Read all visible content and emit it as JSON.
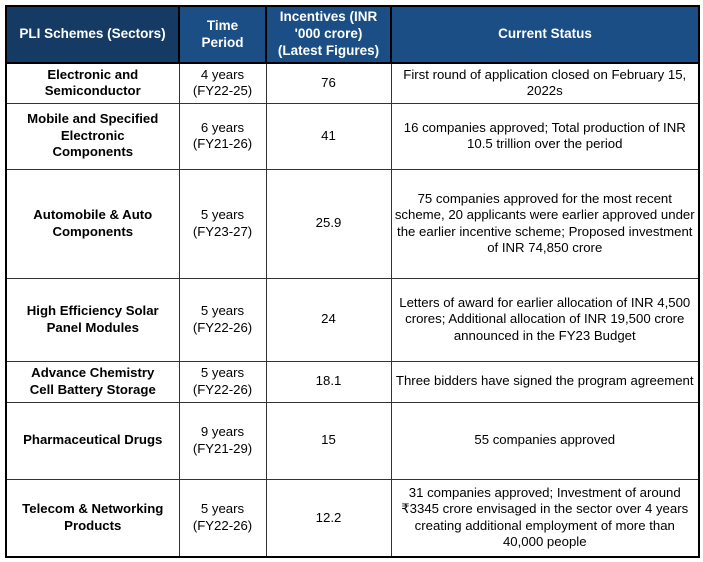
{
  "table": {
    "title": "PLI Schemes table",
    "headers": {
      "sector": "PLI Schemes (Sectors)",
      "time_period": "Time\nPeriod",
      "incentive": "Incentives (INR\n'000 crore)\n(Latest Figures)",
      "status": "Current Status"
    },
    "rows": [
      {
        "sector": "Electronic and\nSemiconductor",
        "time_period": "4 years\n(FY22-25)",
        "incentive": "76",
        "status": "First round of application closed on February 15, 2022s"
      },
      {
        "sector": "Mobile and Specified\nElectronic\nComponents",
        "time_period": "6 years\n(FY21-26)",
        "incentive": "41",
        "status": "16 companies approved; Total production of INR 10.5 trillion over the period"
      },
      {
        "sector": "Automobile & Auto\nComponents",
        "time_period": "5 years\n(FY23-27)",
        "incentive": "25.9",
        "status": "75 companies approved for the most recent scheme, 20 applicants were earlier approved under the earlier incentive scheme; Proposed investment of INR 74,850 crore"
      },
      {
        "sector": "High Efficiency Solar\nPanel Modules",
        "time_period": "5 years\n(FY22-26)",
        "incentive": "24",
        "status": "Letters of award for earlier allocation of INR 4,500 crores; Additional allocation of INR 19,500 crore announced in the FY23 Budget"
      },
      {
        "sector": "Advance Chemistry\nCell Battery Storage",
        "time_period": "5 years\n(FY22-26)",
        "incentive": "18.1",
        "status": "Three bidders have signed the program agreement"
      },
      {
        "sector": "Pharmaceutical Drugs",
        "time_period": "9 years\n(FY21-29)",
        "incentive": "15",
        "status": "55 companies approved"
      },
      {
        "sector": "Telecom & Networking\nProducts",
        "time_period": "5 years\n(FY22-26)",
        "incentive": "12.2",
        "status": "31 companies approved; Investment of around ₹3345 crore envisaged in the sector over 4 years creating additional employment of more than 40,000 people"
      }
    ]
  },
  "colors": {
    "header_bg": "#1A4E84",
    "header_first_bg": "#153A63",
    "header_text": "#FFFFFF",
    "border": "#333333"
  }
}
